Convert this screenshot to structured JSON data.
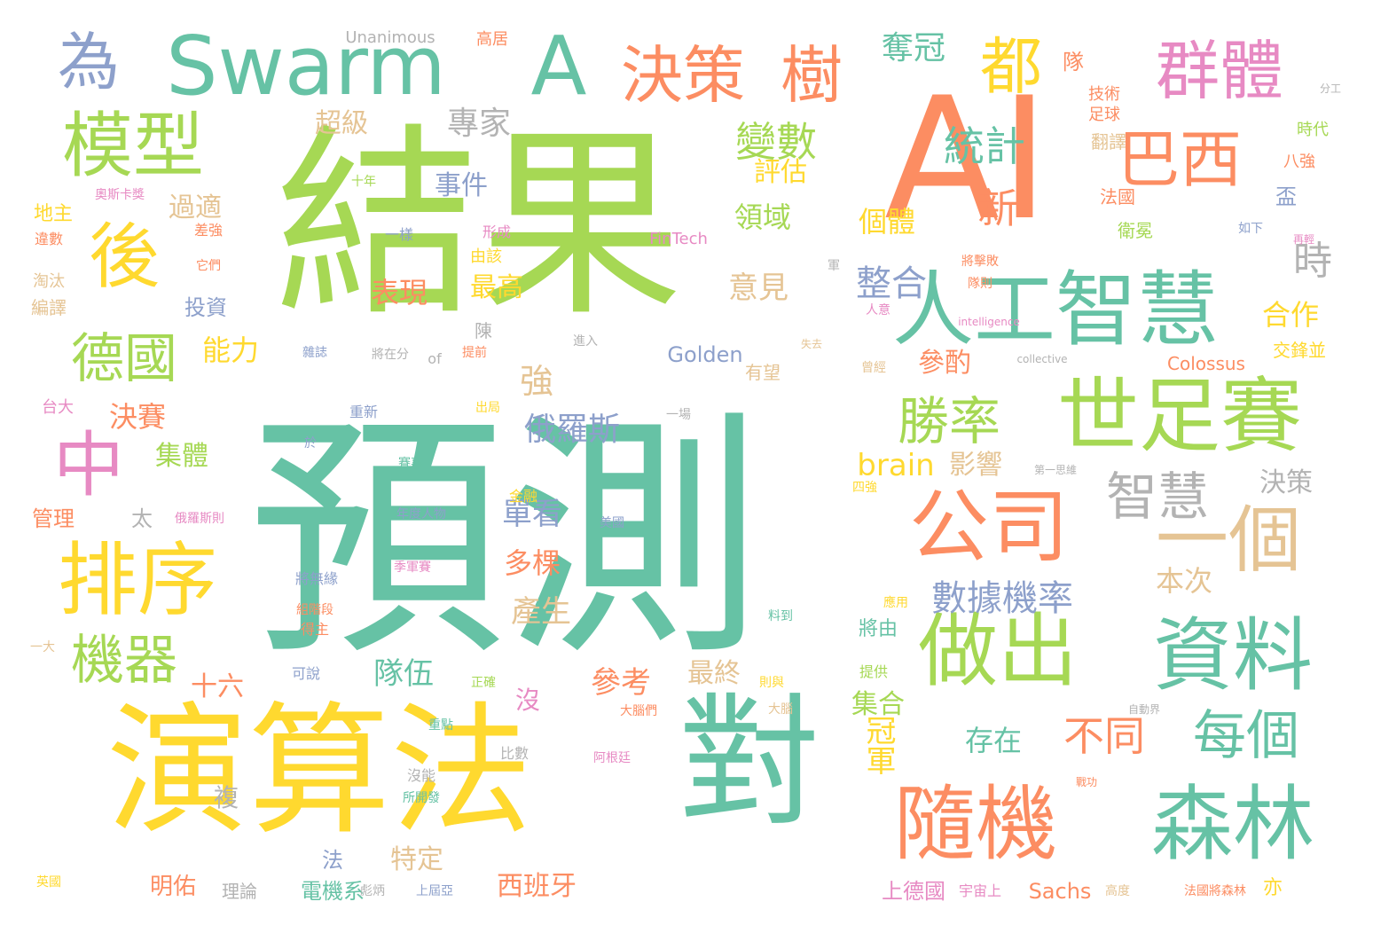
{
  "palette": {
    "teal": "#66c2a5",
    "orange": "#fc8d62",
    "blue": "#8da0cb",
    "pink": "#e78ac3",
    "green": "#a6d854",
    "yellow": "#ffd92f",
    "tan": "#e5c494",
    "gray": "#b3b3b3"
  },
  "words": [
    {
      "text": "預測",
      "color": "teal"
    },
    {
      "text": "結果",
      "color": "green"
    },
    {
      "text": "演算法",
      "color": "yellow"
    },
    {
      "text": "對",
      "color": "teal"
    },
    {
      "text": "AI",
      "color": "orange"
    },
    {
      "text": "Swarm",
      "color": "teal"
    },
    {
      "text": "A",
      "color": "teal"
    },
    {
      "text": "決策",
      "color": "orange"
    },
    {
      "text": "樹",
      "color": "orange"
    },
    {
      "text": "都",
      "color": "yellow"
    },
    {
      "text": "群體",
      "color": "pink"
    },
    {
      "text": "模型",
      "color": "green"
    },
    {
      "text": "後",
      "color": "yellow"
    },
    {
      "text": "為",
      "color": "blue"
    },
    {
      "text": "中",
      "color": "pink"
    },
    {
      "text": "排序",
      "color": "yellow"
    },
    {
      "text": "德國",
      "color": "green"
    },
    {
      "text": "機器",
      "color": "green"
    },
    {
      "text": "巴西",
      "color": "orange"
    },
    {
      "text": "人工智慧",
      "color": "teal"
    },
    {
      "text": "世足賽",
      "color": "green"
    },
    {
      "text": "公司",
      "color": "orange"
    },
    {
      "text": "一個",
      "color": "tan"
    },
    {
      "text": "資料",
      "color": "teal"
    },
    {
      "text": "做出",
      "color": "green"
    },
    {
      "text": "隨機",
      "color": "orange"
    },
    {
      "text": "森林",
      "color": "teal"
    },
    {
      "text": "每個",
      "color": "teal"
    },
    {
      "text": "勝率",
      "color": "green"
    },
    {
      "text": "智慧",
      "color": "gray"
    },
    {
      "text": "變數",
      "color": "green"
    },
    {
      "text": "統計",
      "color": "teal"
    },
    {
      "text": "專家",
      "color": "gray"
    },
    {
      "text": "奪冠",
      "color": "teal"
    },
    {
      "text": "新",
      "color": "orange"
    },
    {
      "text": "數據機率",
      "color": "blue"
    },
    {
      "text": "整合",
      "color": "blue"
    },
    {
      "text": "不同",
      "color": "orange"
    },
    {
      "text": "時",
      "color": "gray"
    },
    {
      "text": "合作",
      "color": "yellow"
    },
    {
      "text": "強",
      "color": "tan"
    },
    {
      "text": "俄羅斯",
      "color": "blue"
    },
    {
      "text": "超級",
      "color": "tan"
    },
    {
      "text": "事件",
      "color": "blue"
    },
    {
      "text": "評估",
      "color": "yellow"
    },
    {
      "text": "領域",
      "color": "green"
    },
    {
      "text": "過適",
      "color": "tan"
    },
    {
      "text": "意見",
      "color": "tan"
    },
    {
      "text": "個體",
      "color": "yellow"
    },
    {
      "text": "表現",
      "color": "orange"
    },
    {
      "text": "最高",
      "color": "yellow"
    },
    {
      "text": "能力",
      "color": "yellow"
    },
    {
      "text": "決賽",
      "color": "orange"
    },
    {
      "text": "集體",
      "color": "green"
    },
    {
      "text": "單看",
      "color": "blue"
    },
    {
      "text": "多棵",
      "color": "orange"
    },
    {
      "text": "影響",
      "color": "tan"
    },
    {
      "text": "brain",
      "color": "yellow"
    },
    {
      "text": "本次",
      "color": "tan"
    },
    {
      "text": "產生",
      "color": "tan"
    },
    {
      "text": "決策",
      "color": "gray"
    },
    {
      "text": "參考",
      "color": "orange"
    },
    {
      "text": "最終",
      "color": "tan"
    },
    {
      "text": "隊伍",
      "color": "teal"
    },
    {
      "text": "十六",
      "color": "orange"
    },
    {
      "text": "冠軍",
      "color": "yellow"
    },
    {
      "text": "存在",
      "color": "teal"
    },
    {
      "text": "集合",
      "color": "green"
    },
    {
      "text": "參酌",
      "color": "orange"
    },
    {
      "text": "西班牙",
      "color": "orange"
    },
    {
      "text": "特定",
      "color": "tan"
    },
    {
      "text": "Sachs",
      "color": "orange"
    },
    {
      "text": "明佑",
      "color": "orange"
    },
    {
      "text": "電機系",
      "color": "teal"
    },
    {
      "text": "上德國",
      "color": "pink"
    },
    {
      "text": "Golden",
      "color": "blue"
    },
    {
      "text": "Colossus",
      "color": "orange"
    },
    {
      "text": "Unanimous",
      "color": "gray"
    },
    {
      "text": "高居",
      "color": "orange"
    },
    {
      "text": "FinTech",
      "color": "pink"
    },
    {
      "text": "技術",
      "color": "orange"
    },
    {
      "text": "足球",
      "color": "orange"
    },
    {
      "text": "翻譯",
      "color": "tan"
    },
    {
      "text": "法國",
      "color": "orange"
    },
    {
      "text": "衛冕",
      "color": "green"
    },
    {
      "text": "八強",
      "color": "orange"
    },
    {
      "text": "時代",
      "color": "green"
    },
    {
      "text": "交鋒並",
      "color": "yellow"
    },
    {
      "text": "地主",
      "color": "yellow"
    },
    {
      "text": "淘汰",
      "color": "tan"
    },
    {
      "text": "編譯",
      "color": "tan"
    },
    {
      "text": "投資",
      "color": "blue"
    },
    {
      "text": "台大",
      "color": "pink"
    },
    {
      "text": "管理",
      "color": "orange"
    },
    {
      "text": "太",
      "color": "gray"
    },
    {
      "text": "沒",
      "color": "pink"
    },
    {
      "text": "複",
      "color": "gray"
    },
    {
      "text": "法",
      "color": "blue"
    },
    {
      "text": "亦",
      "color": "yellow"
    },
    {
      "text": "將由",
      "color": "teal"
    },
    {
      "text": "隊",
      "color": "orange"
    },
    {
      "text": "盃",
      "color": "blue"
    },
    {
      "text": "陳",
      "color": "gray"
    },
    {
      "text": "of",
      "color": "gray"
    },
    {
      "text": "理論",
      "color": "gray"
    },
    {
      "text": "英國",
      "color": "yellow"
    },
    {
      "text": "進入",
      "color": "gray"
    },
    {
      "text": "有望",
      "color": "tan"
    },
    {
      "text": "美國",
      "color": "blue"
    },
    {
      "text": "金融",
      "color": "yellow"
    },
    {
      "text": "年度人物",
      "color": "blue"
    },
    {
      "text": "季軍賽",
      "color": "pink"
    },
    {
      "text": "將無緣",
      "color": "blue"
    },
    {
      "text": "四強",
      "color": "yellow"
    },
    {
      "text": "應用",
      "color": "yellow"
    },
    {
      "text": "提供",
      "color": "green"
    },
    {
      "text": "宇宙上",
      "color": "pink"
    },
    {
      "text": "可說",
      "color": "blue"
    },
    {
      "text": "一大",
      "color": "tan"
    },
    {
      "text": "十年",
      "color": "green"
    },
    {
      "text": "由該",
      "color": "yellow"
    },
    {
      "text": "形成",
      "color": "pink"
    },
    {
      "text": "一樣",
      "color": "blue"
    },
    {
      "text": "差強",
      "color": "orange"
    },
    {
      "text": "它們",
      "color": "orange"
    },
    {
      "text": "奧斯卡獎",
      "color": "pink"
    },
    {
      "text": "違數",
      "color": "orange"
    },
    {
      "text": "正確",
      "color": "green"
    },
    {
      "text": "得主",
      "color": "orange"
    },
    {
      "text": "料到",
      "color": "teal"
    },
    {
      "text": "則與",
      "color": "yellow"
    },
    {
      "text": "大腦",
      "color": "tan"
    },
    {
      "text": "比數",
      "color": "gray"
    },
    {
      "text": "沒能",
      "color": "gray"
    },
    {
      "text": "所開發",
      "color": "teal"
    },
    {
      "text": "阿根廷",
      "color": "pink"
    },
    {
      "text": "上屆亞",
      "color": "blue"
    },
    {
      "text": "彪炳",
      "color": "gray"
    },
    {
      "text": "重新",
      "color": "blue"
    },
    {
      "text": "出局",
      "color": "yellow"
    },
    {
      "text": "提前",
      "color": "orange"
    },
    {
      "text": "將在分",
      "color": "gray"
    },
    {
      "text": "雜誌",
      "color": "blue"
    },
    {
      "text": "失去",
      "color": "tan"
    },
    {
      "text": "曾經",
      "color": "tan"
    },
    {
      "text": "intelligence",
      "color": "pink"
    },
    {
      "text": "collective",
      "color": "gray"
    },
    {
      "text": "將擊敗",
      "color": "orange"
    },
    {
      "text": "隊則",
      "color": "orange"
    },
    {
      "text": "人意",
      "color": "pink"
    },
    {
      "text": "軍",
      "color": "gray"
    },
    {
      "text": "一場",
      "color": "gray"
    },
    {
      "text": "組階段",
      "color": "orange"
    },
    {
      "text": "賽事",
      "color": "teal"
    },
    {
      "text": "俄羅斯則",
      "color": "pink"
    },
    {
      "text": "大腦們",
      "color": "orange"
    },
    {
      "text": "重點",
      "color": "teal"
    },
    {
      "text": "法國將森林",
      "color": "orange"
    },
    {
      "text": "高度",
      "color": "tan"
    },
    {
      "text": "如下",
      "color": "blue"
    },
    {
      "text": "再輕",
      "color": "pink"
    },
    {
      "text": "分工",
      "color": "gray"
    },
    {
      "text": "於",
      "color": "blue"
    },
    {
      "text": "第一思維",
      "color": "gray"
    },
    {
      "text": "自動界",
      "color": "gray"
    },
    {
      "text": "戰功",
      "color": "orange"
    }
  ]
}
